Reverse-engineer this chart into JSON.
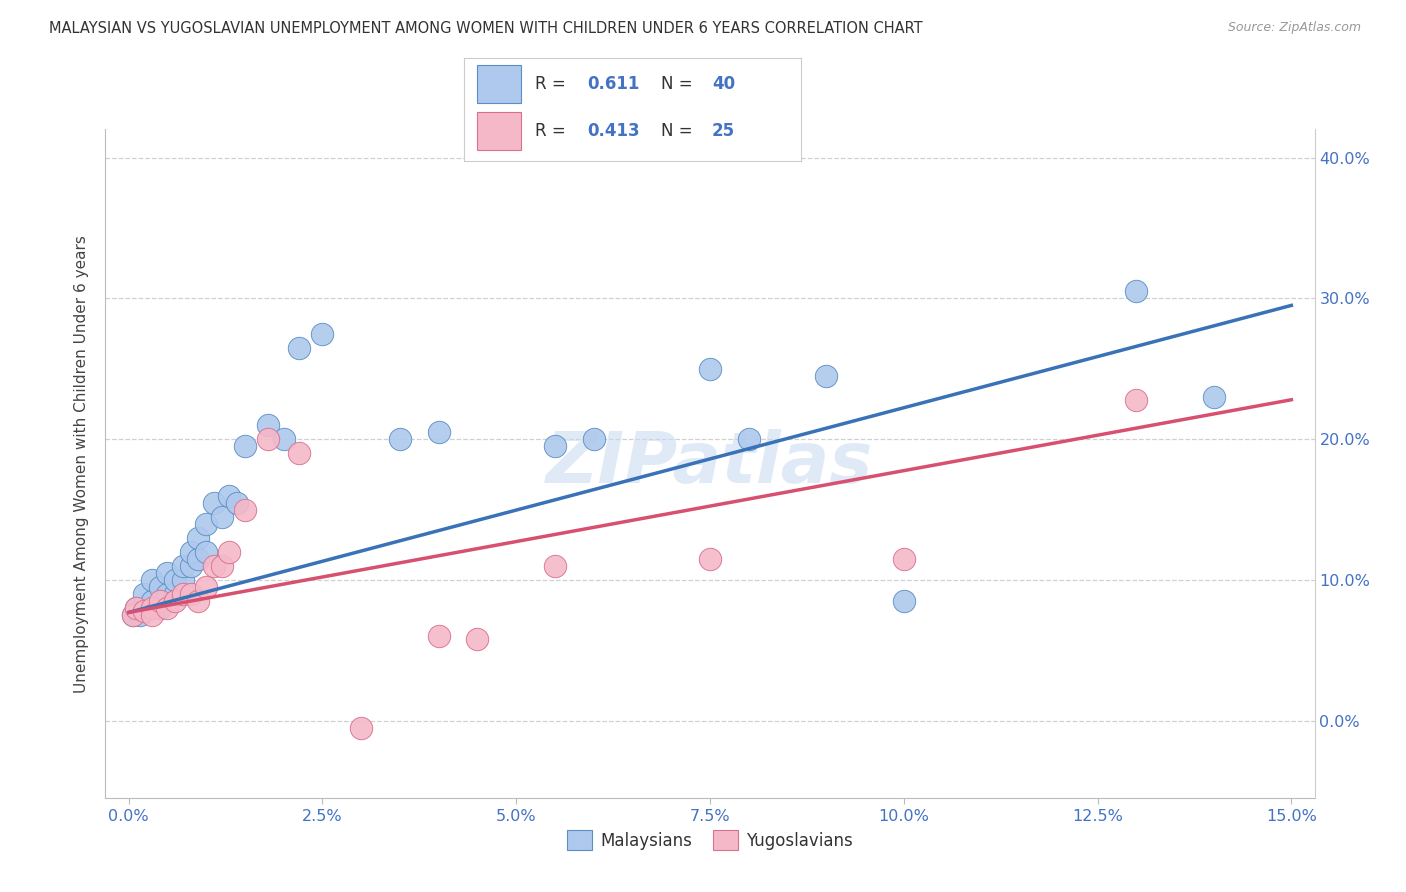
{
  "title": "MALAYSIAN VS YUGOSLAVIAN UNEMPLOYMENT AMONG WOMEN WITH CHILDREN UNDER 6 YEARS CORRELATION CHART",
  "source": "Source: ZipAtlas.com",
  "ylabel": "Unemployment Among Women with Children Under 6 years",
  "xlim_min": -0.003,
  "xlim_max": 0.153,
  "ylim_min": -0.055,
  "ylim_max": 0.42,
  "xtick_vals": [
    0.0,
    0.025,
    0.05,
    0.075,
    0.1,
    0.125,
    0.15
  ],
  "ytick_vals": [
    0.0,
    0.1,
    0.2,
    0.3,
    0.4
  ],
  "bg_color": "#ffffff",
  "grid_color": "#d0d0d0",
  "blue_fill": "#aec9ed",
  "blue_edge": "#5b8ec4",
  "pink_fill": "#f5b8c8",
  "pink_edge": "#d87090",
  "blue_line": "#3a72b8",
  "pink_line": "#d85070",
  "tick_color": "#4472c4",
  "title_color": "#333333",
  "source_color": "#999999",
  "ylabel_color": "#444444",
  "watermark_color": "#c8daf0",
  "legend_R1": "0.611",
  "legend_N1": "40",
  "legend_R2": "0.413",
  "legend_N2": "25",
  "mal_x": [
    0.0005,
    0.001,
    0.0015,
    0.002,
    0.002,
    0.003,
    0.003,
    0.004,
    0.004,
    0.005,
    0.005,
    0.006,
    0.006,
    0.007,
    0.007,
    0.008,
    0.008,
    0.009,
    0.009,
    0.01,
    0.01,
    0.011,
    0.012,
    0.013,
    0.014,
    0.015,
    0.018,
    0.02,
    0.022,
    0.025,
    0.035,
    0.04,
    0.055,
    0.06,
    0.075,
    0.08,
    0.09,
    0.1,
    0.13,
    0.14
  ],
  "mal_y": [
    0.075,
    0.08,
    0.075,
    0.08,
    0.09,
    0.085,
    0.1,
    0.08,
    0.095,
    0.09,
    0.105,
    0.09,
    0.1,
    0.1,
    0.11,
    0.11,
    0.12,
    0.115,
    0.13,
    0.12,
    0.14,
    0.155,
    0.145,
    0.16,
    0.155,
    0.195,
    0.21,
    0.2,
    0.265,
    0.275,
    0.2,
    0.205,
    0.195,
    0.2,
    0.25,
    0.2,
    0.245,
    0.085,
    0.305,
    0.23
  ],
  "yug_x": [
    0.0005,
    0.001,
    0.002,
    0.003,
    0.003,
    0.004,
    0.005,
    0.006,
    0.007,
    0.008,
    0.009,
    0.01,
    0.011,
    0.012,
    0.013,
    0.015,
    0.018,
    0.022,
    0.03,
    0.04,
    0.045,
    0.055,
    0.075,
    0.1,
    0.13
  ],
  "yug_y": [
    0.075,
    0.08,
    0.078,
    0.08,
    0.075,
    0.085,
    0.08,
    0.085,
    0.09,
    0.09,
    0.085,
    0.095,
    0.11,
    0.11,
    0.12,
    0.15,
    0.2,
    0.19,
    -0.005,
    0.06,
    0.058,
    0.11,
    0.115,
    0.115,
    0.228
  ],
  "trend_blue_x0": 0.0,
  "trend_blue_y0": 0.077,
  "trend_blue_x1": 0.15,
  "trend_blue_y1": 0.295,
  "trend_pink_x0": 0.0,
  "trend_pink_y0": 0.077,
  "trend_pink_x1": 0.15,
  "trend_pink_y1": 0.228
}
